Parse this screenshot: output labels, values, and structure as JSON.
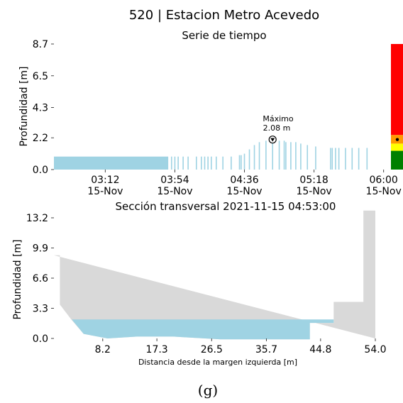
{
  "header": {
    "title": "520 | Estacion Metro Acevedo",
    "subtitle": "Serie de tiempo"
  },
  "caption": "(g)",
  "colors": {
    "water": "#9fd3e3",
    "ground": "#d9d9d9",
    "alert_red": "#ff0000",
    "alert_orange": "#ff9900",
    "alert_yellow": "#ffff00",
    "alert_green": "#008000"
  },
  "chart_data": [
    {
      "type": "bar",
      "title": "Serie de tiempo",
      "ylabel": "Profundidad [m]",
      "ylim": [
        0,
        8.7
      ],
      "yticks": [
        "0.0",
        "2.2",
        "4.3",
        "6.5",
        "8.7"
      ],
      "xlim": [
        "2021-11-15 02:41",
        "2021-11-15 06:04"
      ],
      "xticks": [
        {
          "time": "03:12",
          "date": "15-Nov"
        },
        {
          "time": "03:54",
          "date": "15-Nov"
        },
        {
          "time": "04:36",
          "date": "15-Nov"
        },
        {
          "time": "05:18",
          "date": "15-Nov"
        },
        {
          "time": "06:00",
          "date": "15-Nov"
        }
      ],
      "block": {
        "from": "02:41",
        "to": "03:50",
        "value": 0.9
      },
      "samples": [
        {
          "t": "03:52",
          "v": 0.9
        },
        {
          "t": "03:54",
          "v": 0.9
        },
        {
          "t": "03:56",
          "v": 0.9
        },
        {
          "t": "03:59",
          "v": 0.9
        },
        {
          "t": "04:02",
          "v": 0.9
        },
        {
          "t": "04:07",
          "v": 0.9
        },
        {
          "t": "04:10",
          "v": 0.9
        },
        {
          "t": "04:12",
          "v": 0.9
        },
        {
          "t": "04:14",
          "v": 0.9
        },
        {
          "t": "04:16",
          "v": 0.9
        },
        {
          "t": "04:19",
          "v": 0.9
        },
        {
          "t": "04:23",
          "v": 0.9
        },
        {
          "t": "04:28",
          "v": 0.9
        },
        {
          "t": "04:33",
          "v": 1.0
        },
        {
          "t": "04:34",
          "v": 1.0
        },
        {
          "t": "04:36",
          "v": 1.1
        },
        {
          "t": "04:39",
          "v": 1.4
        },
        {
          "t": "04:42",
          "v": 1.7
        },
        {
          "t": "04:45",
          "v": 1.9
        },
        {
          "t": "04:49",
          "v": 2.0
        },
        {
          "t": "04:53",
          "v": 2.08
        },
        {
          "t": "04:57",
          "v": 2.0
        },
        {
          "t": "05:00",
          "v": 2.0
        },
        {
          "t": "05:01",
          "v": 1.9
        },
        {
          "t": "05:04",
          "v": 1.9
        },
        {
          "t": "05:07",
          "v": 1.9
        },
        {
          "t": "05:10",
          "v": 1.8
        },
        {
          "t": "05:14",
          "v": 1.7
        },
        {
          "t": "05:19",
          "v": 1.6
        },
        {
          "t": "05:28",
          "v": 1.5
        },
        {
          "t": "05:29",
          "v": 1.5
        },
        {
          "t": "05:31",
          "v": 1.5
        },
        {
          "t": "05:33",
          "v": 1.5
        },
        {
          "t": "05:37",
          "v": 1.5
        },
        {
          "t": "05:41",
          "v": 1.5
        },
        {
          "t": "05:45",
          "v": 1.5
        },
        {
          "t": "05:50",
          "v": 1.5
        }
      ],
      "annotation": {
        "label": "Máximo",
        "value_label": "2.08 m",
        "t": "04:53",
        "value": 2.08
      },
      "alert_levels": [
        {
          "color": "green",
          "from": 0.0,
          "to": 1.3
        },
        {
          "color": "yellow",
          "from": 1.3,
          "to": 1.8
        },
        {
          "color": "orange",
          "from": 1.8,
          "to": 2.4
        },
        {
          "color": "red",
          "from": 2.4,
          "to": 8.7
        }
      ],
      "current_level_marker": 2.08
    },
    {
      "type": "area",
      "title": "Sección transversal 2021-11-15 04:53:00",
      "xlabel": "Distancia desde la margen izquierda [m]",
      "ylabel": "Profundidad [m]",
      "xlim": [
        0,
        54.0
      ],
      "ylim": [
        0,
        13.2
      ],
      "xticks": [
        "8.2",
        "17.3",
        "26.5",
        "35.7",
        "44.8",
        "54.0"
      ],
      "yticks": [
        "0.0",
        "3.3",
        "6.6",
        "9.9",
        "13.2"
      ],
      "water_level": 2.08,
      "profile": [
        [
          0,
          9.1
        ],
        [
          1.0,
          9.1
        ],
        [
          1.0,
          3.7
        ],
        [
          3.0,
          2.0
        ],
        [
          5.0,
          0.5
        ],
        [
          9.0,
          0.0
        ],
        [
          14.0,
          0.2
        ],
        [
          20.0,
          0.2
        ],
        [
          28.0,
          -0.1
        ],
        [
          36.0,
          -0.1
        ],
        [
          43.0,
          -0.1
        ],
        [
          43.0,
          1.7
        ],
        [
          47.0,
          1.7
        ],
        [
          47.0,
          4.0
        ],
        [
          52.0,
          4.0
        ],
        [
          52.0,
          14.0
        ],
        [
          54.0,
          14.0
        ],
        [
          54.0,
          0
        ]
      ],
      "water_polygon": [
        [
          3.0,
          2.08
        ],
        [
          47.0,
          2.08
        ],
        [
          47.0,
          1.7
        ],
        [
          43.0,
          1.7
        ],
        [
          43.0,
          -0.1
        ],
        [
          36.0,
          -0.1
        ],
        [
          28.0,
          -0.1
        ],
        [
          20.0,
          0.2
        ],
        [
          14.0,
          0.2
        ],
        [
          9.0,
          0.0
        ],
        [
          5.0,
          0.5
        ]
      ]
    }
  ]
}
